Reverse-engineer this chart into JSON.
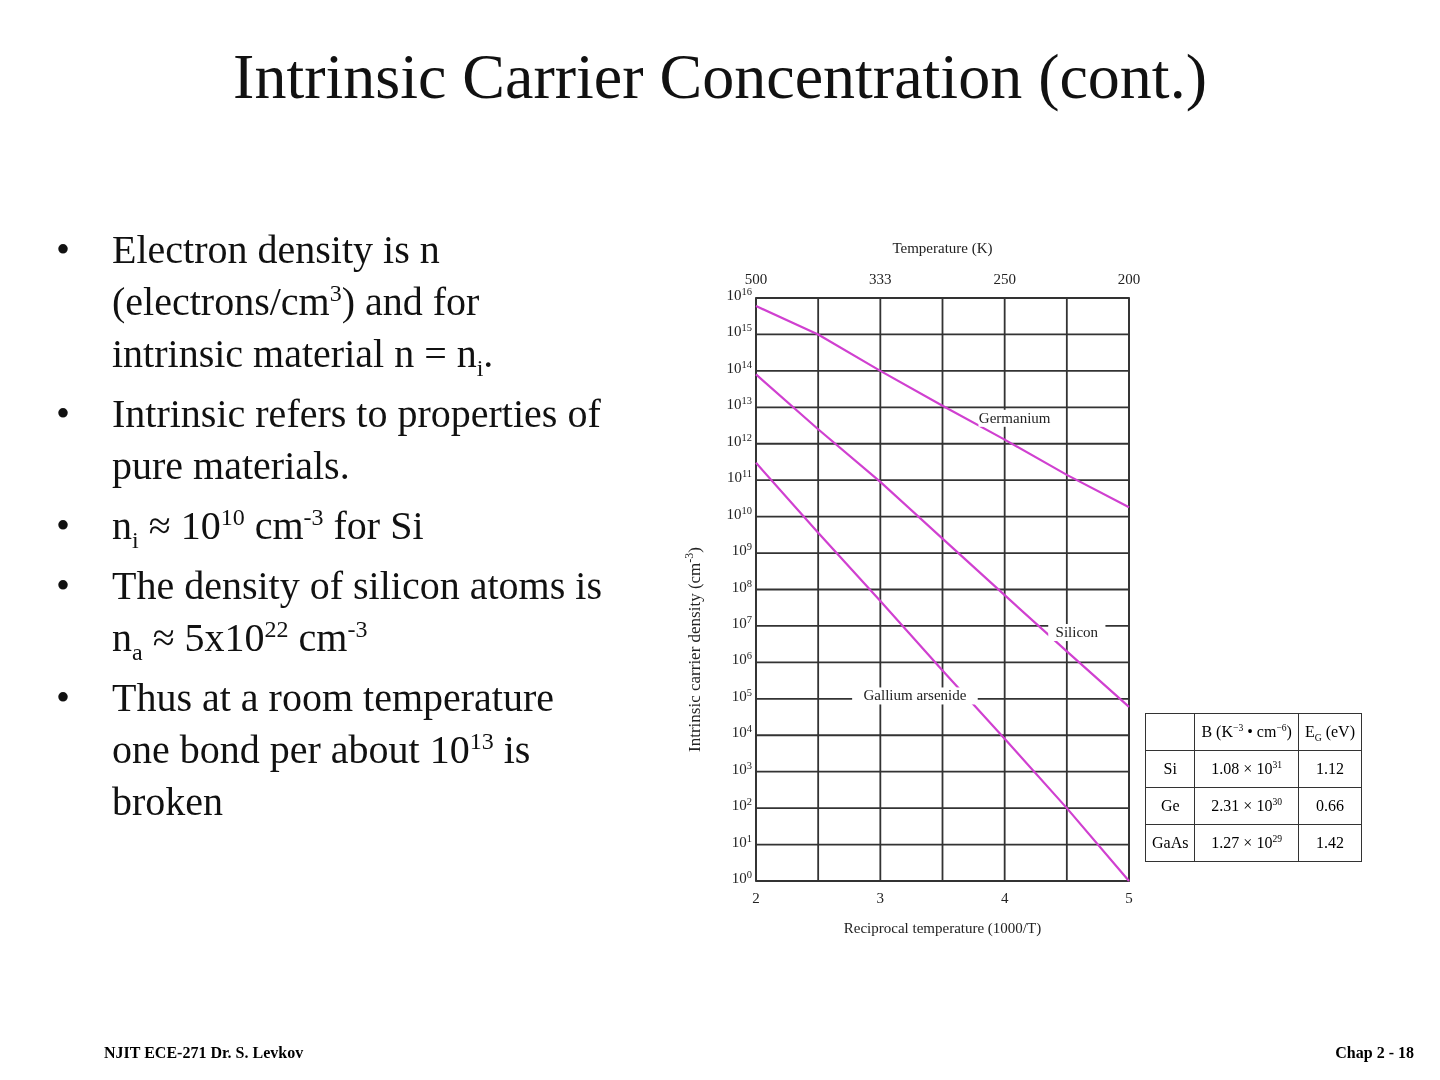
{
  "chart_data": {
    "type": "line",
    "title": "Intrinsic Carrier Concentration (cont.)",
    "xlabel": "Reciprocal temperature (1000/T)",
    "ylabel": "Intrinsic carrier density (cm$^{-3}$)",
    "x2label": "Temperature (K)",
    "x": [
      2,
      2.5,
      3,
      3.5,
      4,
      4.5,
      5
    ],
    "series": [
      {
        "name": "Germanium",
        "color": "#d040d0",
        "values": [
          6000000000000000.0,
          1000000000000000.0,
          100000000000000.0,
          11000000000000.0,
          1300000000000.0,
          140000000000.0,
          18000000000.0
        ]
      },
      {
        "name": "Silicon",
        "color": "#d040d0",
        "values": [
          80000000000000.0,
          2500000000000.0,
          90000000000.0,
          2500000000.0,
          70000000.0,
          2000000.0,
          60000.0
        ]
      },
      {
        "name": "Gallium arsenide",
        "color": "#d040d0",
        "values": [
          300000000000.0,
          3600000000.0,
          48000000.0,
          600000.0,
          8000.0,
          100.0,
          1
        ]
      }
    ],
    "log": "y",
    "grid": true,
    "legend": false,
    "xlim": [
      2,
      5
    ],
    "xticks": [
      2,
      {
        "value": 2.5,
        "label": null
      },
      3,
      {
        "value": 3.5,
        "label": null
      },
      4,
      {
        "value": 4.5,
        "label": null
      },
      5
    ],
    "ylim": [
      1,
      1e+16
    ],
    "yticks": [
      {
        "value": 1,
        "label": "10$^{0}$"
      },
      {
        "value": 10,
        "label": "10$^{1}$"
      },
      {
        "value": 100,
        "label": "10$^{2}$"
      },
      {
        "value": 1000.0,
        "label": "10$^{3}$"
      },
      {
        "value": 10000.0,
        "label": "10$^{4}$"
      },
      {
        "value": 100000.0,
        "label": "10$^{5}$"
      },
      {
        "value": 1000000.0,
        "label": "10$^{6}$"
      },
      {
        "value": 10000000.0,
        "label": "10$^{7}$"
      },
      {
        "value": 100000000.0,
        "label": "10$^{8}$"
      },
      {
        "value": 1000000000.0,
        "label": "10$^{9}$"
      },
      {
        "value": 10000000000.0,
        "label": "10$^{10}$"
      },
      {
        "value": 100000000000.0,
        "label": "10$^{11}$"
      },
      {
        "value": 1000000000000.0,
        "label": "10$^{12}$"
      },
      {
        "value": 10000000000000.0,
        "label": "10$^{13}$"
      },
      {
        "value": 100000000000000.0,
        "label": "10$^{14}$"
      },
      {
        "value": 1000000000000000.0,
        "label": "10$^{15}$"
      },
      {
        "value": 1e+16,
        "label": "10$^{16}$"
      }
    ],
    "annotations": [
      "• Electron density is n (electrons/cm$^{3}$) and for intrinsic material n = n$_{i}$.",
      "• Intrinsic refers to properties of pure materials.",
      "• n$_{i}$ ≈ 10$^{10}$ cm$^{-3}$ for Si",
      "• The density of silicon atoms is   n$_{a}$ ≈ 5x10$^{22}$ cm$^{-3}$",
      "• Thus at a room temperature one bond per about 10$^{13}$ is broken",
      "NJIT ECE-271 Dr. S. Levkov",
      "Chap 2 - 18",
      "B (K$^{−3}$ • cm$^{−6}$)",
      "E$_{G}$ (eV)",
      "Si",
      "1.08 × 10$^{31}$",
      "1.12",
      "Ge",
      "2.31 × 10$^{30}$",
      "0.66",
      "GaAs",
      "1.27 × 10$^{29}$",
      "1.42",
      "500",
      "333",
      "250",
      "200"
    ]
  }
}
